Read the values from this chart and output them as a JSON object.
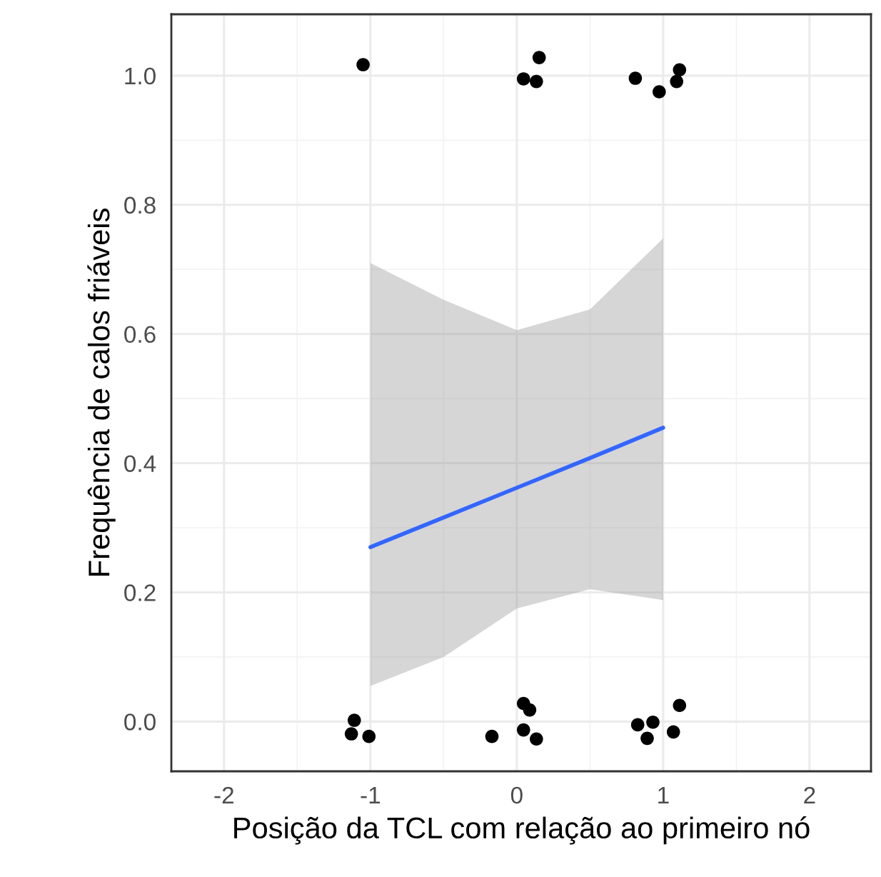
{
  "chart_data": {
    "type": "scatter",
    "xlabel": "Posição da TCL com relação ao primeiro nó",
    "ylabel": "Frequência de calos friáveis",
    "xlim": [
      -2.36,
      2.42
    ],
    "ylim": [
      -0.077,
      1.095
    ],
    "xticks": [
      -2,
      -1,
      0,
      1,
      2
    ],
    "yticks": [
      {
        "value": 0,
        "label": "0.0"
      },
      {
        "value": 0.2,
        "label": "0.2"
      },
      {
        "value": 0.4,
        "label": "0.4"
      },
      {
        "value": 0.6,
        "label": "0.6"
      },
      {
        "value": 0.8,
        "label": "0.8"
      },
      {
        "value": 1,
        "label": "1.0"
      }
    ],
    "grid": true,
    "series": [
      {
        "marker": "circle",
        "color": "#000000",
        "x": [
          -1.05,
          0.153,
          0.046,
          0.134,
          0.81,
          0.973,
          1.092,
          1.112,
          -1.11,
          -1.13,
          -1.01,
          -0.17,
          0.046,
          0.088,
          0.046,
          0.134,
          0.826,
          0.93,
          0.891,
          1.07,
          1.112
        ],
        "values": [
          1.017,
          1.028,
          0.995,
          0.991,
          0.996,
          0.975,
          0.991,
          1.009,
          0.002,
          -0.019,
          -0.023,
          -0.023,
          0.028,
          0.018,
          -0.013,
          -0.027,
          -0.005,
          -0.001,
          -0.026,
          -0.016,
          0.025
        ]
      },
      {
        "type": "line",
        "marker": "none",
        "color": "#3366ff",
        "x": [
          -1,
          -0.5,
          0,
          0.5,
          1
        ],
        "values": [
          0.27,
          0.316,
          0.362,
          0.408,
          0.455
        ],
        "lower": [
          0.055,
          0.1,
          0.175,
          0.205,
          0.188
        ],
        "upper": [
          0.71,
          0.653,
          0.606,
          0.638,
          0.748
        ]
      }
    ]
  }
}
